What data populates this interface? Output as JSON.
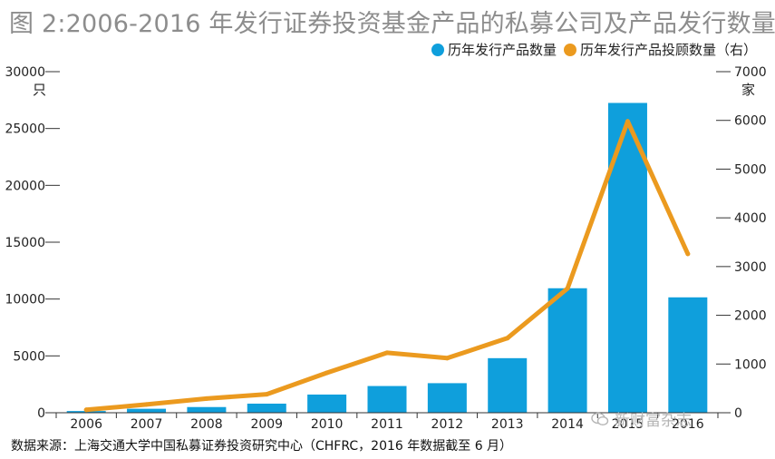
{
  "title": "图 2:2006-2016 年发行证券投资基金产品的私募公司及产品发行数量",
  "left_unit": "只",
  "right_unit": "家",
  "source_note": "数据来源：上海交通大学中国私募证券投资研究中心（CHFRC，2016 年数据截至 6 月）",
  "watermark": "新财富杂志",
  "colors": {
    "bar": "#0f9fdc",
    "line": "#eb9a1f",
    "axis": "#333333",
    "title": "#8d8d8d"
  },
  "chart_data": {
    "type": "bar",
    "categories": [
      "2006",
      "2007",
      "2008",
      "2009",
      "2010",
      "2011",
      "2012",
      "2013",
      "2014",
      "2015",
      "2016"
    ],
    "series": [
      {
        "name": "历年发行产品数量",
        "type": "bar",
        "axis": "left",
        "values": [
          150,
          350,
          500,
          800,
          1600,
          2350,
          2600,
          4800,
          10950,
          27250,
          10150
        ]
      },
      {
        "name": "历年发行产品投顾数量（右）",
        "type": "line",
        "axis": "right",
        "values": [
          60,
          170,
          290,
          380,
          820,
          1230,
          1120,
          1530,
          2550,
          5980,
          3260
        ]
      }
    ],
    "y_left": {
      "min": 0,
      "max": 30000,
      "ticks": [
        0,
        5000,
        10000,
        15000,
        20000,
        25000,
        30000
      ]
    },
    "y_right": {
      "min": 0,
      "max": 7000,
      "ticks": [
        0,
        1000,
        2000,
        3000,
        4000,
        5000,
        6000,
        7000
      ]
    },
    "legend_position": "top-right",
    "grid": false
  }
}
